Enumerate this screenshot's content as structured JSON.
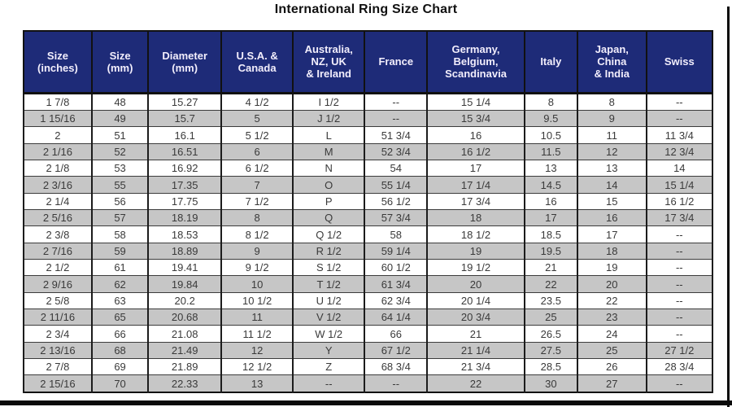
{
  "page": {
    "title": "International Ring Size Chart"
  },
  "colors": {
    "header_bg": "#1e2b78",
    "header_text": "#f2eefc",
    "row": "#ffffff",
    "row_alt": "#c6c6c6",
    "text": "#3a3a3a",
    "border": "#111111"
  },
  "chart_data": {
    "type": "table",
    "title": "International Ring Size Chart",
    "legend_position": "none",
    "grid": true,
    "columns": [
      {
        "id": "size-inches",
        "label": "Size\n(inches)"
      },
      {
        "id": "size-mm",
        "label": "Size\n(mm)"
      },
      {
        "id": "diameter-mm",
        "label": "Diameter\n(mm)"
      },
      {
        "id": "usa-canada",
        "label": "U.S.A. &\nCanada"
      },
      {
        "id": "australia-nz-uk-ireland",
        "label": "Australia,\nNZ, UK\n& Ireland"
      },
      {
        "id": "france",
        "label": "France"
      },
      {
        "id": "germany-belgium-scandinavia",
        "label": "Germany,\nBelgium,\nScandinavia"
      },
      {
        "id": "italy",
        "label": "Italy"
      },
      {
        "id": "japan-china-india",
        "label": "Japan,\nChina\n& India"
      },
      {
        "id": "swiss",
        "label": "Swiss"
      }
    ],
    "rows": [
      [
        "1 7/8",
        "48",
        "15.27",
        "4 1/2",
        "I 1/2",
        "--",
        "15 1/4",
        "8",
        "8",
        "--"
      ],
      [
        "1 15/16",
        "49",
        "15.7",
        "5",
        "J 1/2",
        "--",
        "15 3/4",
        "9.5",
        "9",
        "--"
      ],
      [
        "2",
        "51",
        "16.1",
        "5 1/2",
        "L",
        "51 3/4",
        "16",
        "10.5",
        "11",
        "11 3/4"
      ],
      [
        "2 1/16",
        "52",
        "16.51",
        "6",
        "M",
        "52 3/4",
        "16 1/2",
        "11.5",
        "12",
        "12 3/4"
      ],
      [
        "2 1/8",
        "53",
        "16.92",
        "6 1/2",
        "N",
        "54",
        "17",
        "13",
        "13",
        "14"
      ],
      [
        "2 3/16",
        "55",
        "17.35",
        "7",
        "O",
        "55 1/4",
        "17 1/4",
        "14.5",
        "14",
        "15 1/4"
      ],
      [
        "2 1/4",
        "56",
        "17.75",
        "7 1/2",
        "P",
        "56 1/2",
        "17 3/4",
        "16",
        "15",
        "16 1/2"
      ],
      [
        "2 5/16",
        "57",
        "18.19",
        "8",
        "Q",
        "57 3/4",
        "18",
        "17",
        "16",
        "17 3/4"
      ],
      [
        "2 3/8",
        "58",
        "18.53",
        "8 1/2",
        "Q 1/2",
        "58",
        "18 1/2",
        "18.5",
        "17",
        "--"
      ],
      [
        "2 7/16",
        "59",
        "18.89",
        "9",
        "R 1/2",
        "59 1/4",
        "19",
        "19.5",
        "18",
        "--"
      ],
      [
        "2 1/2",
        "61",
        "19.41",
        "9 1/2",
        "S 1/2",
        "60 1/2",
        "19 1/2",
        "21",
        "19",
        "--"
      ],
      [
        "2 9/16",
        "62",
        "19.84",
        "10",
        "T 1/2",
        "61 3/4",
        "20",
        "22",
        "20",
        "--"
      ],
      [
        "2 5/8",
        "63",
        "20.2",
        "10 1/2",
        "U 1/2",
        "62 3/4",
        "20 1/4",
        "23.5",
        "22",
        "--"
      ],
      [
        "2 11/16",
        "65",
        "20.68",
        "11",
        "V 1/2",
        "64 1/4",
        "20 3/4",
        "25",
        "23",
        "--"
      ],
      [
        "2 3/4",
        "66",
        "21.08",
        "11 1/2",
        "W 1/2",
        "66",
        "21",
        "26.5",
        "24",
        "--"
      ],
      [
        "2 13/16",
        "68",
        "21.49",
        "12",
        "Y",
        "67 1/2",
        "21 1/4",
        "27.5",
        "25",
        "27 1/2"
      ],
      [
        "2 7/8",
        "69",
        "21.89",
        "12 1/2",
        "Z",
        "68 3/4",
        "21 3/4",
        "28.5",
        "26",
        "28 3/4"
      ],
      [
        "2 15/16",
        "70",
        "22.33",
        "13",
        "--",
        "--",
        "22",
        "30",
        "27",
        "--"
      ]
    ]
  }
}
